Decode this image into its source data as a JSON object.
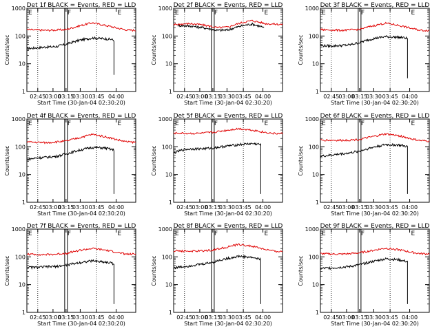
{
  "ylabel": "Counts/sec",
  "xlabel": "Start Time (30-Jan-04 02:30:20)",
  "y_ticks": [
    "1",
    "10",
    "100",
    "1000"
  ],
  "colors": {
    "events": "#000000",
    "lld": "#e00000",
    "frame": "#000000"
  },
  "chart_data": [
    {
      "type": "line",
      "title": "Det 1f BLACK = Events, RED = LLD",
      "x_ticks": [
        "02:45",
        "03:00",
        "03:15",
        "03:30",
        "03:45",
        "04:00"
      ],
      "markers": [
        "E",
        "F",
        "E"
      ],
      "ylim": [
        1,
        1000
      ],
      "yscale": "log",
      "events_drop": [
        2,
        4
      ],
      "series": [
        {
          "key": "events",
          "x": [
            0.0,
            0.1,
            0.18,
            0.27,
            0.36,
            0.48,
            0.6,
            0.72,
            0.78,
            0.8
          ],
          "values": [
            35,
            38,
            40,
            42,
            50,
            70,
            85,
            80,
            75,
            70
          ]
        },
        {
          "key": "lld",
          "x": [
            0.0,
            0.18,
            0.27,
            0.36,
            0.48,
            0.6,
            0.72,
            0.84,
            0.92,
            1.0
          ],
          "values": [
            170,
            160,
            165,
            170,
            230,
            300,
            240,
            190,
            165,
            160
          ]
        }
      ]
    },
    {
      "type": "line",
      "title": "Det 2f BLACK = Events, RED = LLD",
      "x_ticks": [
        "02:45",
        "03:00",
        "03:15",
        "03:30",
        "03:45",
        "04:00"
      ],
      "markers": [
        "E",
        "F",
        "E"
      ],
      "ylim": [
        1,
        1000
      ],
      "yscale": "log",
      "events_drop": [
        null,
        null
      ],
      "series": [
        {
          "key": "events",
          "x": [
            0.04,
            0.15,
            0.27,
            0.4,
            0.5,
            0.62,
            0.72,
            0.8,
            0.83
          ],
          "values": [
            240,
            230,
            200,
            160,
            165,
            230,
            270,
            220,
            190
          ]
        },
        {
          "key": "lld",
          "x": [
            0.0,
            0.15,
            0.27,
            0.4,
            0.5,
            0.62,
            0.72,
            0.84,
            1.0
          ],
          "values": [
            260,
            280,
            250,
            200,
            210,
            300,
            360,
            280,
            260
          ]
        }
      ]
    },
    {
      "type": "line",
      "title": "Det 3f BLACK = Events, RED = LLD",
      "x_ticks": [
        "02:45",
        "03:00",
        "03:15",
        "03:30",
        "03:45",
        "04:00"
      ],
      "markers": [
        "E",
        "F",
        "E"
      ],
      "ylim": [
        1,
        1000
      ],
      "yscale": "log",
      "events_drop": [
        8,
        3
      ],
      "series": [
        {
          "key": "events",
          "x": [
            0.0,
            0.1,
            0.18,
            0.27,
            0.36,
            0.48,
            0.6,
            0.72,
            0.78,
            0.8
          ],
          "values": [
            45,
            44,
            45,
            48,
            58,
            80,
            95,
            90,
            85,
            80
          ]
        },
        {
          "key": "lld",
          "x": [
            0.0,
            0.18,
            0.27,
            0.36,
            0.48,
            0.6,
            0.72,
            0.84,
            0.92,
            1.0
          ],
          "values": [
            170,
            160,
            165,
            175,
            230,
            290,
            240,
            185,
            160,
            160
          ]
        }
      ]
    },
    {
      "type": "line",
      "title": "Det 4f BLACK = Events, RED = LLD",
      "x_ticks": [
        "02:45",
        "03:00",
        "03:15",
        "03:30",
        "03:45",
        "04:00"
      ],
      "markers": [
        "E",
        "F",
        "E"
      ],
      "ylim": [
        1,
        1000
      ],
      "yscale": "log",
      "events_drop": [
        8,
        2
      ],
      "series": [
        {
          "key": "events",
          "x": [
            0.0,
            0.1,
            0.18,
            0.27,
            0.36,
            0.48,
            0.6,
            0.72,
            0.78,
            0.8
          ],
          "values": [
            35,
            40,
            42,
            45,
            55,
            75,
            95,
            90,
            80,
            75
          ]
        },
        {
          "key": "lld",
          "x": [
            0.0,
            0.18,
            0.27,
            0.36,
            0.48,
            0.6,
            0.72,
            0.84,
            0.92,
            1.0
          ],
          "values": [
            150,
            140,
            150,
            160,
            210,
            280,
            230,
            175,
            150,
            145
          ]
        }
      ]
    },
    {
      "type": "line",
      "title": "Det 5f BLACK = Events, RED = LLD",
      "x_ticks": [
        "02:45",
        "03:00",
        "03:15",
        "03:30",
        "03:45",
        "04:00"
      ],
      "markers": [
        "E",
        "F",
        "E"
      ],
      "ylim": [
        1,
        1000
      ],
      "yscale": "log",
      "events_drop": [
        15,
        2
      ],
      "series": [
        {
          "key": "events",
          "x": [
            0.0,
            0.1,
            0.18,
            0.27,
            0.36,
            0.48,
            0.6,
            0.72,
            0.78,
            0.8
          ],
          "values": [
            60,
            80,
            85,
            85,
            90,
            105,
            120,
            130,
            125,
            115
          ]
        },
        {
          "key": "lld",
          "x": [
            0.0,
            0.18,
            0.27,
            0.36,
            0.48,
            0.6,
            0.72,
            0.84,
            0.92,
            1.0
          ],
          "values": [
            310,
            300,
            310,
            330,
            390,
            450,
            400,
            330,
            300,
            300
          ]
        }
      ]
    },
    {
      "type": "line",
      "title": "Det 6f BLACK = Events, RED = LLD",
      "x_ticks": [
        "02:45",
        "03:00",
        "03:15",
        "03:30",
        "03:45",
        "04:00"
      ],
      "markers": [
        "E",
        "F",
        "E"
      ],
      "ylim": [
        1,
        1000
      ],
      "yscale": "log",
      "events_drop": [
        10,
        2
      ],
      "series": [
        {
          "key": "events",
          "x": [
            0.0,
            0.1,
            0.18,
            0.27,
            0.36,
            0.48,
            0.6,
            0.72,
            0.78,
            0.8
          ],
          "values": [
            45,
            50,
            55,
            60,
            70,
            95,
            120,
            115,
            105,
            100
          ]
        },
        {
          "key": "lld",
          "x": [
            0.0,
            0.18,
            0.27,
            0.36,
            0.48,
            0.6,
            0.72,
            0.84,
            0.92,
            1.0
          ],
          "values": [
            175,
            170,
            175,
            185,
            230,
            290,
            250,
            190,
            165,
            160
          ]
        }
      ]
    },
    {
      "type": "line",
      "title": "Det 7f BLACK = Events, RED = LLD",
      "x_ticks": [
        "02:45",
        "03:00",
        "03:15",
        "03:30",
        "03:45",
        "04:00"
      ],
      "markers": [
        "E",
        "F",
        "E"
      ],
      "ylim": [
        1,
        1000
      ],
      "yscale": "log",
      "events_drop": [
        8,
        2
      ],
      "series": [
        {
          "key": "events",
          "x": [
            0.0,
            0.1,
            0.18,
            0.27,
            0.36,
            0.48,
            0.6,
            0.72,
            0.78,
            0.8
          ],
          "values": [
            42,
            42,
            44,
            45,
            50,
            62,
            72,
            65,
            60,
            55
          ]
        },
        {
          "key": "lld",
          "x": [
            0.0,
            0.18,
            0.27,
            0.36,
            0.48,
            0.6,
            0.72,
            0.84,
            0.92,
            1.0
          ],
          "values": [
            125,
            120,
            125,
            135,
            170,
            200,
            175,
            140,
            125,
            125
          ]
        }
      ]
    },
    {
      "type": "line",
      "title": "Det 8f BLACK = Events, RED = LLD",
      "x_ticks": [
        "02:45",
        "03:00",
        "03:15",
        "03:30",
        "03:45",
        "04:00"
      ],
      "markers": [
        "E",
        "F",
        "E"
      ],
      "ylim": [
        1,
        1000
      ],
      "yscale": "log",
      "events_drop": [
        3,
        2
      ],
      "series": [
        {
          "key": "events",
          "x": [
            0.0,
            0.1,
            0.18,
            0.27,
            0.36,
            0.48,
            0.6,
            0.72,
            0.78,
            0.8
          ],
          "values": [
            40,
            45,
            50,
            55,
            65,
            85,
            105,
            95,
            85,
            80
          ]
        },
        {
          "key": "lld",
          "x": [
            0.0,
            0.18,
            0.27,
            0.36,
            0.48,
            0.6,
            0.72,
            0.84,
            0.92,
            1.0
          ],
          "values": [
            165,
            160,
            165,
            175,
            220,
            280,
            240,
            185,
            160,
            155
          ]
        }
      ]
    },
    {
      "type": "line",
      "title": "Det 9f BLACK = Events, RED = LLD",
      "x_ticks": [
        "02:45",
        "03:00",
        "03:15",
        "03:30",
        "03:45",
        "04:00"
      ],
      "markers": [
        "E",
        "F",
        "E"
      ],
      "ylim": [
        1,
        1000
      ],
      "yscale": "log",
      "events_drop": [
        4,
        2
      ],
      "series": [
        {
          "key": "events",
          "x": [
            0.0,
            0.1,
            0.18,
            0.27,
            0.36,
            0.48,
            0.6,
            0.72,
            0.78,
            0.8
          ],
          "values": [
            38,
            40,
            42,
            45,
            52,
            68,
            85,
            78,
            70,
            65
          ]
        },
        {
          "key": "lld",
          "x": [
            0.0,
            0.18,
            0.27,
            0.36,
            0.48,
            0.6,
            0.72,
            0.84,
            0.92,
            1.0
          ],
          "values": [
            130,
            125,
            130,
            140,
            170,
            205,
            180,
            145,
            130,
            130
          ]
        }
      ]
    }
  ]
}
